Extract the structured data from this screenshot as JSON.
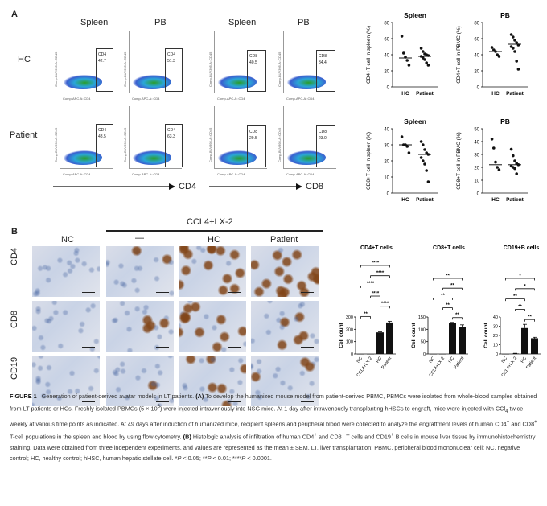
{
  "panel_a": {
    "label": "A",
    "flow_headers": [
      "Spleen",
      "PB",
      "Spleen",
      "PB"
    ],
    "row_labels": [
      "HC",
      "Patient"
    ],
    "axis_cd4": "CD4",
    "axis_cd8": "CD8",
    "plots": [
      {
        "gate": "CD4",
        "value": "42.7"
      },
      {
        "gate": "CD4",
        "value": "51.3"
      },
      {
        "gate": "CD8",
        "value": "40.5"
      },
      {
        "gate": "CD8",
        "value": "34.4"
      },
      {
        "gate": "CD4",
        "value": "48.5"
      },
      {
        "gate": "CD4",
        "value": "63.3"
      },
      {
        "gate": "CD8",
        "value": "29.5"
      },
      {
        "gate": "CD8",
        "value": "23.0"
      }
    ],
    "flow_ylabel": "Comp-BUV395-A::CD45",
    "flow_xlabel": "Comp-APC-A::CD4"
  },
  "chart_data": [
    {
      "type": "scatter",
      "title": "Spleen",
      "ylabel": "CD4+T cell in spleen  (%)",
      "ylim": [
        0,
        80
      ],
      "ticks": [
        0,
        20,
        40,
        60,
        80
      ],
      "categories": [
        "HC",
        "Patient"
      ],
      "points": [
        [
          63,
          42,
          37,
          33,
          27
        ],
        [
          48,
          44,
          41,
          40,
          39,
          38,
          36,
          34,
          30,
          27
        ]
      ],
      "medians": [
        36,
        38
      ]
    },
    {
      "type": "scatter",
      "title": "PB",
      "ylabel": "CD4+T cell in PBMC  (%)",
      "ylim": [
        0,
        80
      ],
      "ticks": [
        0,
        20,
        40,
        60,
        80
      ],
      "categories": [
        "HC",
        "Patient"
      ],
      "points": [
        [
          49,
          46,
          44,
          40,
          38
        ],
        [
          65,
          62,
          58,
          55,
          52,
          50,
          48,
          44,
          32,
          22
        ]
      ],
      "medians": [
        44,
        53
      ]
    },
    {
      "type": "scatter",
      "title": "Spleen",
      "ylabel": "CD8+T cell in spleen  (%)",
      "ylim": [
        0,
        40
      ],
      "ticks": [
        0,
        10,
        20,
        30,
        40
      ],
      "categories": [
        "HC",
        "Patient"
      ],
      "points": [
        [
          35,
          30,
          30,
          29,
          25
        ],
        [
          32,
          30,
          27,
          25,
          24,
          22,
          20,
          18,
          14,
          7
        ]
      ],
      "medians": [
        30,
        24
      ]
    },
    {
      "type": "scatter",
      "title": "PB",
      "ylabel": "CD8+T cell in PBMC  (%)",
      "ylim": [
        0,
        50
      ],
      "ticks": [
        0,
        10,
        20,
        30,
        40,
        50
      ],
      "categories": [
        "HC",
        "Patient"
      ],
      "points": [
        [
          42,
          35,
          24,
          20,
          18
        ],
        [
          34,
          29,
          25,
          23,
          22,
          21,
          20,
          19,
          15
        ]
      ],
      "medians": [
        22,
        22
      ]
    },
    {
      "type": "bar",
      "title": "CD4+T cells",
      "ylabel": "Cell count",
      "ylim": [
        0,
        300
      ],
      "ticks": [
        0,
        100,
        200,
        300
      ],
      "categories": [
        "NC",
        "CCL4+LX-2",
        "HC",
        "Patient"
      ],
      "values": [
        0,
        0,
        175,
        255
      ],
      "errors": [
        0,
        0,
        5,
        10
      ],
      "significance": [
        "****",
        "****",
        "****",
        "****",
        "****",
        "**"
      ]
    },
    {
      "type": "bar",
      "title": "CD8+T cells",
      "ylabel": "Cell count",
      "ylim": [
        0,
        150
      ],
      "ticks": [
        0,
        50,
        100,
        150
      ],
      "categories": [
        "NC",
        "CCL4+LX-2",
        "HC",
        "Patient"
      ],
      "values": [
        0,
        0,
        125,
        110
      ],
      "errors": [
        0,
        0,
        3,
        8
      ],
      "significance": [
        "**",
        "**",
        "**",
        "**",
        "**"
      ]
    },
    {
      "type": "bar",
      "title": "CD19+B cells",
      "ylabel": "Cell count",
      "ylim": [
        0,
        40
      ],
      "ticks": [
        0,
        10,
        20,
        30,
        40
      ],
      "categories": [
        "NC",
        "CCL4+LX-2",
        "HC",
        "Patient"
      ],
      "values": [
        0,
        0.5,
        28,
        17
      ],
      "errors": [
        0,
        0.2,
        4,
        1
      ],
      "significance": [
        "*",
        "*",
        "**",
        "**",
        "**"
      ]
    }
  ],
  "panel_b": {
    "label": "B",
    "group_header": "CCL4+LX-2",
    "col_headers": [
      "NC",
      "—",
      "HC",
      "Patient"
    ],
    "row_labels": [
      "CD4",
      "CD8",
      "CD19"
    ]
  },
  "caption": {
    "fig": "FIGURE 1",
    "sep": " | ",
    "title": "Generation of patient-derived avatar models in LT patients.",
    "a_mark": "(A)",
    "a_text_1": " To develop the humanized mouse model from patient-derived PBMC, PBMCs were isolated from whole-blood samples obtained from LT patients or HCs. Freshly isolated PBMCs (5 × 10",
    "a_sup": "6",
    "a_text_2": ") were injected intravenously into NSG mice. At 1 day after intravenously transplanting hHSCs to engraft, mice were injected with CCl",
    "a_sub": "4",
    "a_text_3": " twice weekly at various time points as indicated. At 49 days after induction of humanized mice, recipient spleens and peripheral blood were collected to analyze the engraftment levels of human CD4",
    "a_sup2": "+",
    "a_text_4": " and CD8",
    "a_sup3": "+",
    "a_text_5": " T-cell populations in the spleen and blood by using flow cytometry.",
    "b_mark": "(B)",
    "b_text_1": " Histologic analysis of infiltration of human CD4",
    "b_sup1": "+",
    "b_text_2": " and CD8",
    "b_sup2": "+",
    "b_text_3": " T cells and CD19",
    "b_sup3": "+",
    "b_text_4": " B cells in mouse liver tissue by immunohistochemistry staining. Data were obtained from three independent experiments, and values are represented as the mean ± SEM. LT, liver transplantation; PBMC, peripheral blood mononuclear cell; NC, negative control; HC, healthy control; hHSC, human hepatic stellate cell. *",
    "p1": "P",
    "t1": " < 0.05; **",
    "p2": "P",
    "t2": " < 0.01; ****",
    "p3": "P",
    "t3": " < 0.0001."
  }
}
